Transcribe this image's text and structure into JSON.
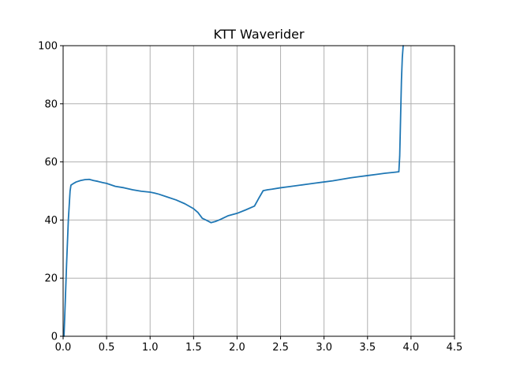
{
  "chart_data": {
    "type": "line",
    "title": "KTT Waverider",
    "xlabel": "",
    "ylabel": "",
    "xlim": [
      0,
      4.5
    ],
    "ylim": [
      0,
      100
    ],
    "xticks": [
      "0.0",
      "0.5",
      "1.0",
      "1.5",
      "2.0",
      "2.5",
      "3.0",
      "3.5",
      "4.0",
      "4.5"
    ],
    "yticks": [
      "0",
      "20",
      "40",
      "60",
      "80",
      "100"
    ],
    "grid": true,
    "series": [
      {
        "color": "#1f77b4",
        "x": [
          0.01,
          0.02,
          0.04,
          0.06,
          0.08,
          0.09,
          0.12,
          0.15,
          0.2,
          0.25,
          0.3,
          0.35,
          0.4,
          0.45,
          0.5,
          0.55,
          0.6,
          0.7,
          0.8,
          0.9,
          1.0,
          1.05,
          1.1,
          1.2,
          1.3,
          1.4,
          1.5,
          1.55,
          1.6,
          1.65,
          1.7,
          1.75,
          1.8,
          1.85,
          1.9,
          2.0,
          2.1,
          2.2,
          2.25,
          2.3,
          2.35,
          2.4,
          2.5,
          2.6,
          2.7,
          2.8,
          2.9,
          3.0,
          3.1,
          3.2,
          3.3,
          3.4,
          3.5,
          3.6,
          3.7,
          3.8,
          3.86,
          3.87,
          3.88,
          3.89,
          3.9,
          3.91
        ],
        "y": [
          0,
          8,
          25,
          40,
          50,
          52,
          52.6,
          53.1,
          53.6,
          53.9,
          54,
          53.6,
          53.3,
          52.9,
          52.6,
          52.1,
          51.6,
          51.1,
          50.4,
          49.9,
          49.6,
          49.3,
          48.9,
          47.9,
          46.9,
          45.6,
          43.9,
          42.6,
          40.6,
          39.9,
          39.1,
          39.5,
          40.1,
          40.8,
          41.5,
          42.3,
          43.5,
          44.8,
          47.5,
          50.1,
          50.4,
          50.6,
          51.1,
          51.5,
          51.9,
          52.3,
          52.7,
          53.1,
          53.5,
          54.0,
          54.5,
          54.9,
          55.3,
          55.7,
          56.1,
          56.4,
          56.6,
          62,
          75,
          88,
          96,
          100
        ]
      }
    ]
  }
}
